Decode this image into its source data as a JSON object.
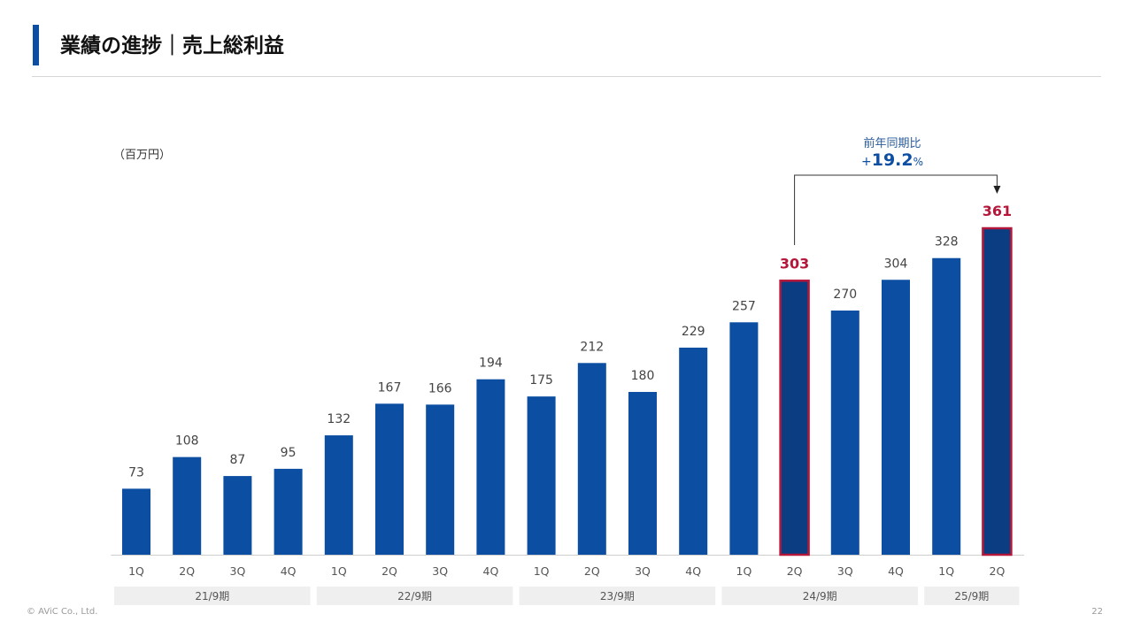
{
  "header": {
    "title": "業績の進捗｜売上総利益"
  },
  "chart_data": {
    "type": "bar",
    "unit_label": "（百万円）",
    "categories": [
      "1Q",
      "2Q",
      "3Q",
      "4Q",
      "1Q",
      "2Q",
      "3Q",
      "4Q",
      "1Q",
      "2Q",
      "3Q",
      "4Q",
      "1Q",
      "2Q",
      "3Q",
      "4Q",
      "1Q",
      "2Q"
    ],
    "values": [
      73,
      108,
      87,
      95,
      132,
      167,
      166,
      194,
      175,
      212,
      180,
      229,
      257,
      303,
      270,
      304,
      328,
      361
    ],
    "periods": [
      {
        "label": "21/9期",
        "count": 4
      },
      {
        "label": "22/9期",
        "count": 4
      },
      {
        "label": "23/9期",
        "count": 4
      },
      {
        "label": "24/9期",
        "count": 4
      },
      {
        "label": "25/9期",
        "count": 2
      }
    ],
    "highlight_indices": [
      13,
      17
    ],
    "ylim": [
      0,
      361
    ],
    "grid": false,
    "annotation": {
      "label": "前年同期比",
      "value_sign": "+",
      "value": "19.2",
      "unit": "%",
      "from_index": 13,
      "to_index": 17
    },
    "colors": {
      "bar": "#0b4ea2",
      "bar_highlight_fill": "#0a3d82",
      "highlight_border": "#b5173a",
      "highlight_label": "#b5173a",
      "period_band": "#efefef"
    }
  },
  "footer": {
    "copyright": "© AViC Co., Ltd.",
    "page_number": "22"
  }
}
